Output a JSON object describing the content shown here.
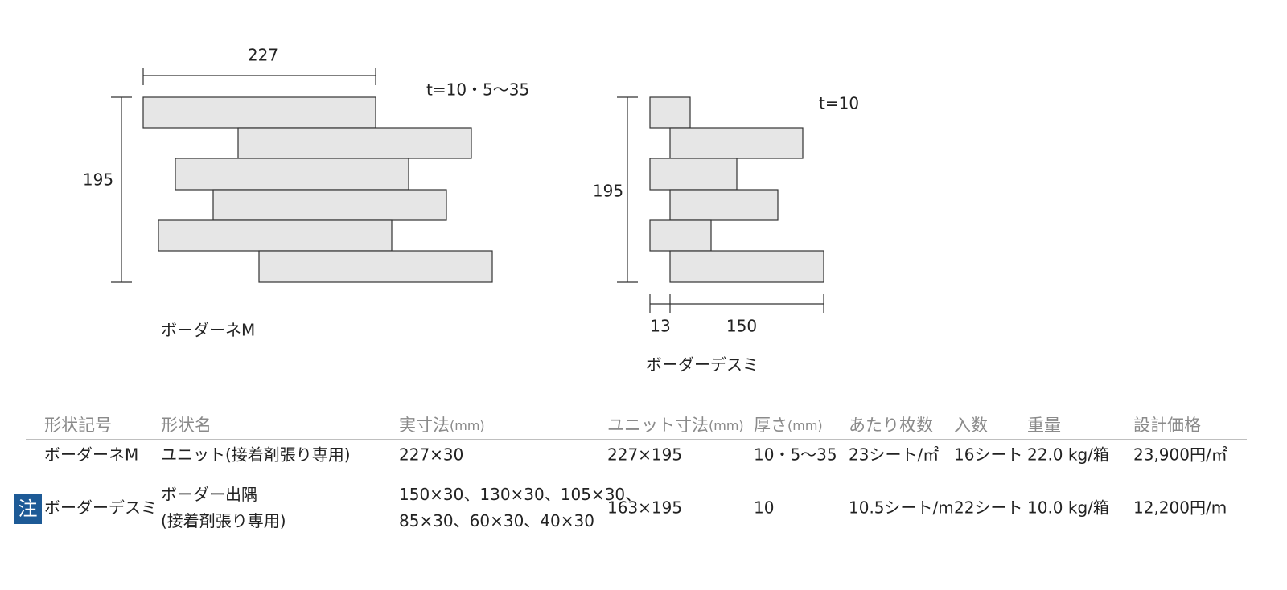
{
  "diagrams": [
    {
      "width": "227",
      "height": "195",
      "thickness": "t=10・5〜35",
      "name": "ボーダーネM"
    },
    {
      "height": "195",
      "thickness": "t=10",
      "offset": "13",
      "length": "150",
      "name": "ボーダーデスミ"
    }
  ],
  "table": {
    "headers": [
      {
        "label": "形状記号"
      },
      {
        "label": "形状名"
      },
      {
        "label": "実寸法",
        "unit": "(mm)"
      },
      {
        "label": "ユニット寸法",
        "unit": "(mm)"
      },
      {
        "label": "厚さ",
        "unit": "(mm)"
      },
      {
        "label": "あたり枚数"
      },
      {
        "label": "入数"
      },
      {
        "label": "重量"
      },
      {
        "label": "設計価格"
      }
    ],
    "rows": [
      {
        "cells": [
          [
            "ボーダーネM"
          ],
          [
            "ユニット(接着剤張り専用)"
          ],
          [
            "227×30"
          ],
          [
            "227×195"
          ],
          [
            "10・5〜35"
          ],
          [
            "23シート/㎡"
          ],
          [
            "16シート"
          ],
          [
            "22.0 kg/箱"
          ],
          [
            "23,900円/㎡"
          ]
        ]
      },
      {
        "badge": "注",
        "cells": [
          [
            "ボーダーデスミ"
          ],
          [
            "ボーダー出隅",
            "(接着剤張り専用)"
          ],
          [
            "150×30、130×30、105×30、",
            "85×30、60×30、40×30"
          ],
          [
            "163×195"
          ],
          [
            "10"
          ],
          [
            "10.5シート/m"
          ],
          [
            "22シート"
          ],
          [
            "10.0 kg/箱"
          ],
          [
            "12,200円/m"
          ]
        ]
      }
    ]
  }
}
